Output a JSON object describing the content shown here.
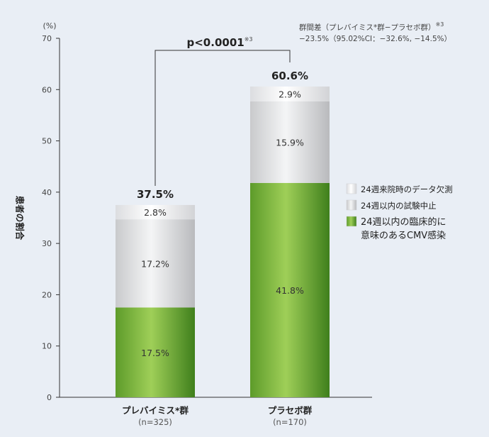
{
  "chart_data": {
    "type": "bar",
    "stacked": true,
    "categories": [
      "プレバイミス*群",
      "プラセボ群"
    ],
    "category_n": [
      "(n=325)",
      "(n=170)"
    ],
    "series": [
      {
        "name": "24週以内の臨床的に意味のあるCMV感染",
        "values": [
          17.5,
          41.8
        ],
        "labels": [
          "17.5%",
          "41.8%"
        ],
        "color": "#7ab840"
      },
      {
        "name": "24週以内の試験中止",
        "values": [
          17.2,
          15.9
        ],
        "labels": [
          "17.2%",
          "15.9%"
        ],
        "color": "#d9dadc"
      },
      {
        "name": "24週来院時のデータ欠測",
        "values": [
          2.8,
          2.9
        ],
        "labels": [
          "2.8%",
          "2.9%"
        ],
        "color": "#f3f4f6"
      }
    ],
    "totals": [
      "37.5%",
      "60.6%"
    ],
    "ylim": [
      0,
      70
    ],
    "yticks": [
      0,
      10,
      20,
      30,
      40,
      50,
      60,
      70
    ],
    "ylabel": "患者の割合",
    "yunit": "(%)",
    "xlabel": "",
    "grid": false,
    "legend_position": "right",
    "legend_order": [
      "24週来院時のデータ欠測",
      "24週以内の試験中止",
      "24週以内の臨床的に意味のあるCMV感染"
    ],
    "legend_lines": [
      [
        "24週来院時のデータ欠測"
      ],
      [
        "24週以内の試験中止"
      ],
      [
        "24週以内の臨床的に",
        "意味のあるCMV感染"
      ]
    ],
    "annotation": {
      "pvalue": "p<0.0001",
      "pvalue_sup": "※3"
    },
    "note": {
      "line1": "群間差（プレバイミス*群−プラセボ群）",
      "line1_sup": "※3",
      "line2": "−23.5%（95.02%CI：−32.6%, −14.5%）"
    }
  }
}
